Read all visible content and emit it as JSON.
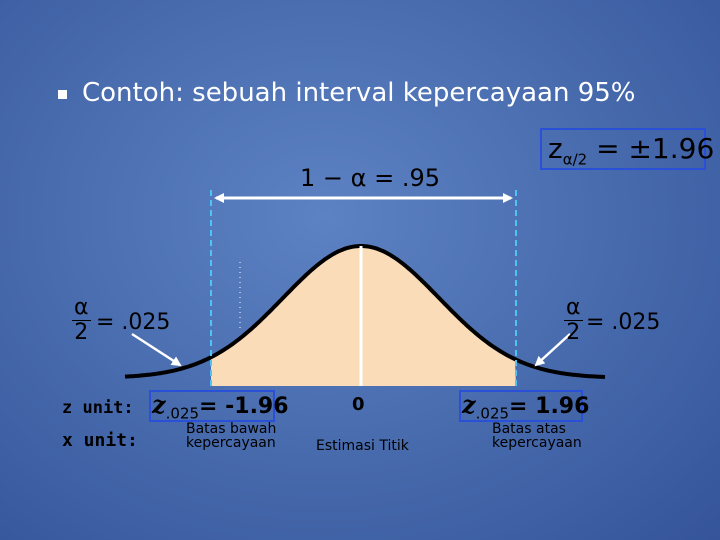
{
  "slide": {
    "title": "Contoh: sebuah interval kepercayaan 95%",
    "z_alpha_half": {
      "label": "z",
      "sub": "α/2",
      "value": "= ±1.96"
    },
    "confidence": "1 − α = .95",
    "alpha_fraction": {
      "num": "α",
      "den": "2",
      "rhs": "= .025"
    },
    "z_unit_label": "z unit:",
    "x_unit_label": "x unit:",
    "z_lower": {
      "z": "z",
      "sub": ".025",
      "value": "= -1.96"
    },
    "z_upper": {
      "z": "z",
      "sub": ".025",
      "value": "= 1.96"
    },
    "center_z": "0",
    "lower_bound": [
      "Batas bawah",
      "kepercayaan"
    ],
    "upper_bound": [
      "Batas atas",
      "kepercayaan"
    ],
    "point_estimate": "Estimasi Titik"
  },
  "colors": {
    "fill": "#fbdcb8",
    "box": "#2a50d8",
    "arrow": "#ffffff",
    "bound_line": "#4fc3f7"
  }
}
